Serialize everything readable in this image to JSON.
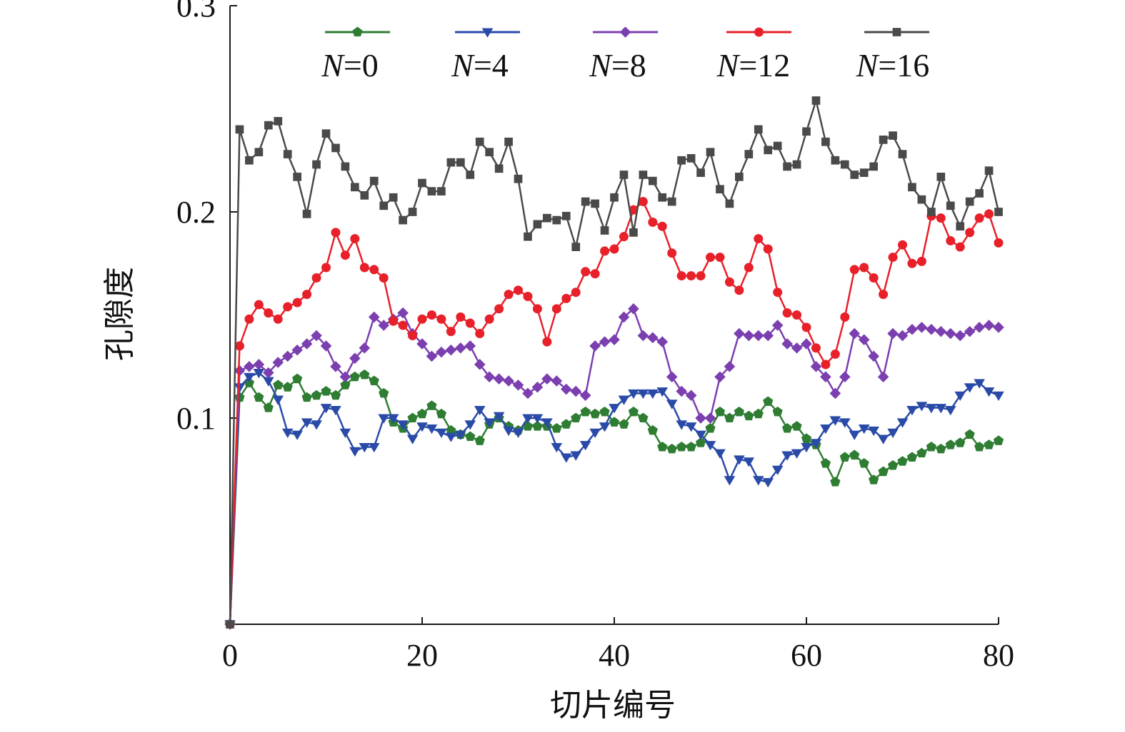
{
  "chart_data": {
    "type": "line",
    "title": "",
    "xlabel": "切片编号",
    "ylabel": "孔隙度",
    "xlim": [
      0,
      80
    ],
    "ylim": [
      0,
      0.3
    ],
    "xticks": [
      0,
      20,
      40,
      60,
      80
    ],
    "xtick_labels": [
      "0",
      "20",
      "40",
      "60",
      "80"
    ],
    "yticks": [
      0.1,
      0.2,
      0.3
    ],
    "ytick_labels": [
      "0.1",
      "0.2",
      "0.3"
    ],
    "legend": "top",
    "grid": false,
    "series": [
      {
        "name": "N=0",
        "name_italic": "N",
        "name_rest": "=0",
        "color": "#2e7d32",
        "marker": "pentagon",
        "x": [
          0,
          1,
          2,
          3,
          4,
          5,
          6,
          7,
          8,
          9,
          10,
          11,
          12,
          13,
          14,
          15,
          16,
          17,
          18,
          19,
          20,
          21,
          22,
          23,
          24,
          25,
          26,
          27,
          28,
          29,
          30,
          31,
          32,
          33,
          34,
          35,
          36,
          37,
          38,
          39,
          40,
          41,
          42,
          43,
          44,
          45,
          46,
          47,
          48,
          49,
          50,
          51,
          52,
          53,
          54,
          55,
          56,
          57,
          58,
          59,
          60,
          61,
          62,
          63,
          64,
          65,
          66,
          67,
          68,
          69,
          70,
          71,
          72,
          73,
          74,
          75,
          76,
          77,
          78,
          79,
          80
        ],
        "y": [
          0.0,
          0.11,
          0.117,
          0.11,
          0.105,
          0.116,
          0.115,
          0.119,
          0.11,
          0.111,
          0.113,
          0.111,
          0.116,
          0.12,
          0.121,
          0.118,
          0.112,
          0.098,
          0.095,
          0.1,
          0.102,
          0.106,
          0.102,
          0.094,
          0.092,
          0.091,
          0.089,
          0.097,
          0.1,
          0.096,
          0.094,
          0.096,
          0.096,
          0.096,
          0.095,
          0.097,
          0.1,
          0.103,
          0.102,
          0.103,
          0.098,
          0.097,
          0.103,
          0.1,
          0.094,
          0.086,
          0.085,
          0.086,
          0.086,
          0.088,
          0.095,
          0.103,
          0.1,
          0.103,
          0.101,
          0.102,
          0.108,
          0.103,
          0.095,
          0.096,
          0.09,
          0.087,
          0.078,
          0.069,
          0.081,
          0.082,
          0.078,
          0.07,
          0.074,
          0.077,
          0.079,
          0.081,
          0.083,
          0.086,
          0.085,
          0.087,
          0.088,
          0.092,
          0.086,
          0.087,
          0.089
        ]
      },
      {
        "name": "N=4",
        "name_italic": "N",
        "name_rest": "=4",
        "color": "#2a4aa8",
        "marker": "triangle-down",
        "x": [
          0,
          1,
          2,
          3,
          4,
          5,
          6,
          7,
          8,
          9,
          10,
          11,
          12,
          13,
          14,
          15,
          16,
          17,
          18,
          19,
          20,
          21,
          22,
          23,
          24,
          25,
          26,
          27,
          28,
          29,
          30,
          31,
          32,
          33,
          34,
          35,
          36,
          37,
          38,
          39,
          40,
          41,
          42,
          43,
          44,
          45,
          46,
          47,
          48,
          49,
          50,
          51,
          52,
          53,
          54,
          55,
          56,
          57,
          58,
          59,
          60,
          61,
          62,
          63,
          64,
          65,
          66,
          67,
          68,
          69,
          70,
          71,
          72,
          73,
          74,
          75,
          76,
          77,
          78,
          79,
          80
        ],
        "y": [
          0.0,
          0.115,
          0.12,
          0.122,
          0.118,
          0.109,
          0.093,
          0.092,
          0.098,
          0.097,
          0.105,
          0.104,
          0.093,
          0.084,
          0.086,
          0.086,
          0.1,
          0.1,
          0.097,
          0.09,
          0.096,
          0.095,
          0.093,
          0.091,
          0.092,
          0.097,
          0.104,
          0.098,
          0.101,
          0.094,
          0.093,
          0.1,
          0.1,
          0.098,
          0.086,
          0.081,
          0.082,
          0.087,
          0.093,
          0.096,
          0.105,
          0.109,
          0.112,
          0.112,
          0.112,
          0.113,
          0.107,
          0.097,
          0.096,
          0.092,
          0.087,
          0.083,
          0.07,
          0.08,
          0.079,
          0.07,
          0.069,
          0.075,
          0.082,
          0.083,
          0.086,
          0.088,
          0.095,
          0.099,
          0.098,
          0.092,
          0.095,
          0.094,
          0.09,
          0.093,
          0.098,
          0.104,
          0.106,
          0.105,
          0.105,
          0.104,
          0.111,
          0.115,
          0.117,
          0.113,
          0.111
        ]
      },
      {
        "name": "N=8",
        "name_italic": "N",
        "name_rest": "=8",
        "color": "#7b3fb0",
        "marker": "diamond",
        "x": [
          0,
          1,
          2,
          3,
          4,
          5,
          6,
          7,
          8,
          9,
          10,
          11,
          12,
          13,
          14,
          15,
          16,
          17,
          18,
          19,
          20,
          21,
          22,
          23,
          24,
          25,
          26,
          27,
          28,
          29,
          30,
          31,
          32,
          33,
          34,
          35,
          36,
          37,
          38,
          39,
          40,
          41,
          42,
          43,
          44,
          45,
          46,
          47,
          48,
          49,
          50,
          51,
          52,
          53,
          54,
          55,
          56,
          57,
          58,
          59,
          60,
          61,
          62,
          63,
          64,
          65,
          66,
          67,
          68,
          69,
          70,
          71,
          72,
          73,
          74,
          75,
          76,
          77,
          78,
          79,
          80
        ],
        "y": [
          0.0,
          0.123,
          0.125,
          0.126,
          0.122,
          0.127,
          0.13,
          0.133,
          0.136,
          0.14,
          0.135,
          0.125,
          0.12,
          0.129,
          0.134,
          0.149,
          0.145,
          0.148,
          0.151,
          0.141,
          0.136,
          0.13,
          0.132,
          0.133,
          0.134,
          0.135,
          0.126,
          0.12,
          0.119,
          0.118,
          0.116,
          0.112,
          0.115,
          0.119,
          0.118,
          0.114,
          0.113,
          0.111,
          0.135,
          0.137,
          0.138,
          0.149,
          0.153,
          0.14,
          0.139,
          0.137,
          0.12,
          0.113,
          0.111,
          0.1,
          0.1,
          0.12,
          0.125,
          0.141,
          0.14,
          0.14,
          0.14,
          0.145,
          0.136,
          0.134,
          0.136,
          0.125,
          0.12,
          0.112,
          0.12,
          0.141,
          0.138,
          0.13,
          0.12,
          0.141,
          0.14,
          0.143,
          0.144,
          0.143,
          0.142,
          0.141,
          0.14,
          0.142,
          0.144,
          0.145,
          0.144
        ]
      },
      {
        "name": "N=12",
        "name_italic": "N",
        "name_rest": "=12",
        "color": "#e8202a",
        "marker": "circle",
        "x": [
          0,
          1,
          2,
          3,
          4,
          5,
          6,
          7,
          8,
          9,
          10,
          11,
          12,
          13,
          14,
          15,
          16,
          17,
          18,
          19,
          20,
          21,
          22,
          23,
          24,
          25,
          26,
          27,
          28,
          29,
          30,
          31,
          32,
          33,
          34,
          35,
          36,
          37,
          38,
          39,
          40,
          41,
          42,
          43,
          44,
          45,
          46,
          47,
          48,
          49,
          50,
          51,
          52,
          53,
          54,
          55,
          56,
          57,
          58,
          59,
          60,
          61,
          62,
          63,
          64,
          65,
          66,
          67,
          68,
          69,
          70,
          71,
          72,
          73,
          74,
          75,
          76,
          77,
          78,
          79,
          80
        ],
        "y": [
          0.0,
          0.135,
          0.148,
          0.155,
          0.151,
          0.148,
          0.154,
          0.156,
          0.16,
          0.168,
          0.173,
          0.19,
          0.179,
          0.187,
          0.173,
          0.172,
          0.168,
          0.147,
          0.145,
          0.14,
          0.148,
          0.15,
          0.148,
          0.142,
          0.149,
          0.146,
          0.141,
          0.148,
          0.153,
          0.16,
          0.162,
          0.159,
          0.153,
          0.137,
          0.153,
          0.158,
          0.161,
          0.171,
          0.17,
          0.181,
          0.182,
          0.188,
          0.201,
          0.205,
          0.195,
          0.193,
          0.18,
          0.169,
          0.169,
          0.169,
          0.178,
          0.178,
          0.166,
          0.162,
          0.173,
          0.187,
          0.182,
          0.161,
          0.151,
          0.15,
          0.144,
          0.134,
          0.126,
          0.131,
          0.149,
          0.172,
          0.173,
          0.168,
          0.16,
          0.178,
          0.184,
          0.175,
          0.176,
          0.198,
          0.197,
          0.186,
          0.183,
          0.19,
          0.197,
          0.199,
          0.185
        ]
      },
      {
        "name": "N=16",
        "name_italic": "N",
        "name_rest": "=16",
        "color": "#4a4a4a",
        "marker": "square",
        "x": [
          0,
          1,
          2,
          3,
          4,
          5,
          6,
          7,
          8,
          9,
          10,
          11,
          12,
          13,
          14,
          15,
          16,
          17,
          18,
          19,
          20,
          21,
          22,
          23,
          24,
          25,
          26,
          27,
          28,
          29,
          30,
          31,
          32,
          33,
          34,
          35,
          36,
          37,
          38,
          39,
          40,
          41,
          42,
          43,
          44,
          45,
          46,
          47,
          48,
          49,
          50,
          51,
          52,
          53,
          54,
          55,
          56,
          57,
          58,
          59,
          60,
          61,
          62,
          63,
          64,
          65,
          66,
          67,
          68,
          69,
          70,
          71,
          72,
          73,
          74,
          75,
          76,
          77,
          78,
          79,
          80
        ],
        "y": [
          0.0,
          0.24,
          0.225,
          0.229,
          0.242,
          0.244,
          0.228,
          0.217,
          0.199,
          0.223,
          0.238,
          0.231,
          0.222,
          0.212,
          0.208,
          0.215,
          0.203,
          0.207,
          0.196,
          0.2,
          0.214,
          0.21,
          0.21,
          0.224,
          0.224,
          0.218,
          0.234,
          0.229,
          0.221,
          0.234,
          0.216,
          0.188,
          0.194,
          0.197,
          0.196,
          0.198,
          0.183,
          0.205,
          0.204,
          0.191,
          0.207,
          0.218,
          0.19,
          0.218,
          0.215,
          0.207,
          0.205,
          0.225,
          0.226,
          0.219,
          0.229,
          0.211,
          0.204,
          0.217,
          0.228,
          0.24,
          0.23,
          0.232,
          0.222,
          0.223,
          0.239,
          0.254,
          0.234,
          0.225,
          0.223,
          0.218,
          0.219,
          0.222,
          0.235,
          0.237,
          0.228,
          0.212,
          0.206,
          0.2,
          0.217,
          0.203,
          0.193,
          0.205,
          0.209,
          0.22,
          0.2
        ]
      }
    ]
  }
}
